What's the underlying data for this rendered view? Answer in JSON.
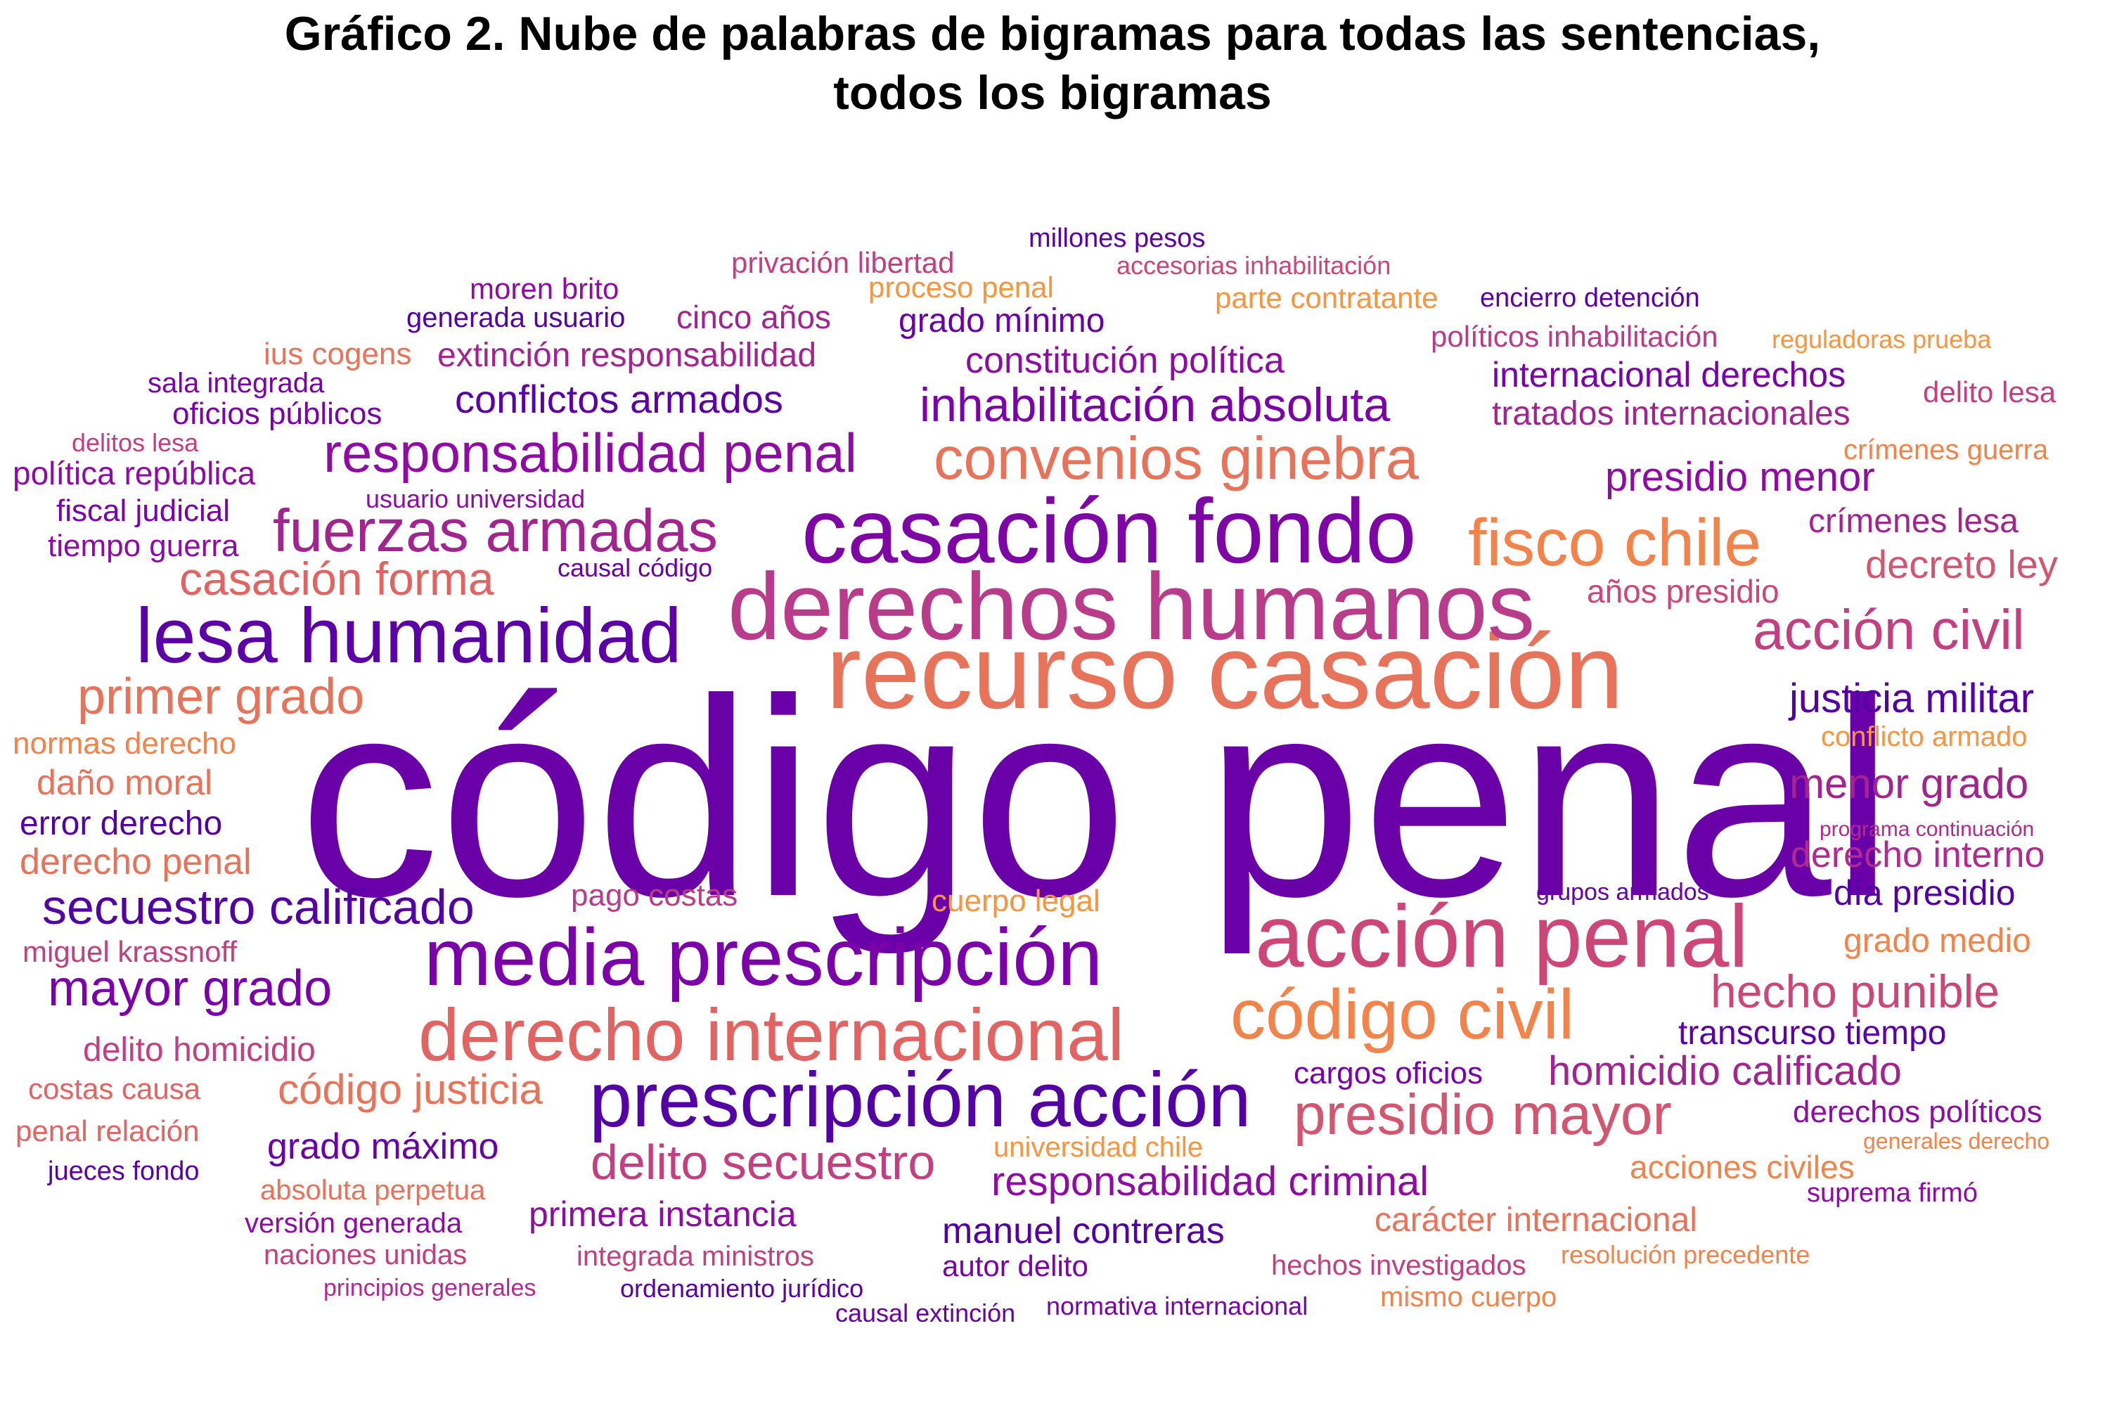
{
  "title": {
    "line1": "Gráfico 2. Nube de palabras de bigramas para todas las sentencias,",
    "line2": "todos los bigramas"
  },
  "palette": [
    "#6a00a8",
    "#8e0ca4",
    "#b12a90",
    "#cc4778",
    "#e16462",
    "#f2844b",
    "#f89540"
  ],
  "words": [
    {
      "text": "código penal",
      "size": 5,
      "color": "#6a00a8"
    },
    {
      "text": "recurso casación",
      "size": 4,
      "color": "#e8735b"
    },
    {
      "text": "derechos humanos",
      "size": 3,
      "color": "#b83c8a"
    },
    {
      "text": "casación fondo",
      "size": 3,
      "color": "#7e06a4"
    },
    {
      "text": "acción penal",
      "size": 3,
      "color": "#cc4778"
    },
    {
      "text": "media prescripción",
      "size": 3,
      "color": "#7a02a8"
    },
    {
      "text": "lesa humanidad",
      "size": 3,
      "color": "#5c01a6"
    },
    {
      "text": "prescripción acción",
      "size": 3,
      "color": "#5302a3"
    },
    {
      "text": "derecho internacional",
      "size": 3,
      "color": "#e16462"
    },
    {
      "text": "código civil",
      "size": 3,
      "color": "#f2844b"
    },
    {
      "text": "fisco chile",
      "size": 2,
      "color": "#f2844b"
    },
    {
      "text": "fuerzas armadas",
      "size": 2,
      "color": "#a2248f"
    },
    {
      "text": "convenios ginebra",
      "size": 2,
      "color": "#e8735b"
    },
    {
      "text": "presidio mayor",
      "size": 2,
      "color": "#d2566f"
    },
    {
      "text": "acción civil",
      "size": 2,
      "color": "#c23f80"
    },
    {
      "text": "responsabilidad penal",
      "size": 2,
      "color": "#8e0ca4"
    },
    {
      "text": "delito secuestro",
      "size": 2,
      "color": "#c23f80"
    },
    {
      "text": "secuestro calificado",
      "size": 2,
      "color": "#5302a3"
    },
    {
      "text": "inhabilitación absoluta",
      "size": 2,
      "color": "#7a02a8"
    },
    {
      "text": "mayor grado",
      "size": 2,
      "color": "#7a02a8"
    },
    {
      "text": "primer grado",
      "size": 2,
      "color": "#e8735b"
    },
    {
      "text": "casación forma",
      "size": 2,
      "color": "#e16462"
    },
    {
      "text": "hecho punible",
      "size": 2,
      "color": "#cc4778"
    },
    {
      "text": "justicia militar",
      "size": 2,
      "color": "#5302a3"
    },
    {
      "text": "menor grado",
      "size": 2,
      "color": "#a2248f"
    },
    {
      "text": "homicidio calificado",
      "size": 2,
      "color": "#a2248f"
    },
    {
      "text": "responsabilidad criminal",
      "size": 2,
      "color": "#8e0ca4"
    },
    {
      "text": "código justicia",
      "size": 2,
      "color": "#e8735b"
    },
    {
      "text": "presidio menor",
      "size": 2,
      "color": "#8e0ca4"
    },
    {
      "text": "decreto ley",
      "size": 2,
      "color": "#d2566f"
    },
    {
      "text": "derecho interno",
      "size": 2,
      "color": "#b12a90"
    },
    {
      "text": "grado máximo",
      "size": 2,
      "color": "#6a00a8"
    },
    {
      "text": "primera instancia",
      "size": 2,
      "color": "#8e0ca4"
    },
    {
      "text": "manuel contreras",
      "size": 2,
      "color": "#5302a3"
    },
    {
      "text": "conflictos armados",
      "size": 2,
      "color": "#5c01a6"
    },
    {
      "text": "constitución política",
      "size": 2,
      "color": "#8e0ca4"
    },
    {
      "text": "extinción responsabilidad",
      "size": 1,
      "color": "#a2248f"
    },
    {
      "text": "cinco años",
      "size": 1,
      "color": "#a2248f"
    },
    {
      "text": "grado mínimo",
      "size": 1,
      "color": "#6a00a8"
    },
    {
      "text": "internacional derechos",
      "size": 1,
      "color": "#7a02a8"
    },
    {
      "text": "tratados internacionales",
      "size": 1,
      "color": "#a2248f"
    },
    {
      "text": "crímenes lesa",
      "size": 1,
      "color": "#a2248f"
    },
    {
      "text": "años presidio",
      "size": 1,
      "color": "#cc4778"
    },
    {
      "text": "daño moral",
      "size": 1,
      "color": "#e8735b"
    },
    {
      "text": "derecho penal",
      "size": 1,
      "color": "#e8735b"
    },
    {
      "text": "error derecho",
      "size": 1,
      "color": "#5302a3"
    },
    {
      "text": "normas derecho",
      "size": 1,
      "color": "#f2844b"
    },
    {
      "text": "día presidio",
      "size": 1,
      "color": "#5302a3"
    },
    {
      "text": "grado medio",
      "size": 1,
      "color": "#f2844b"
    },
    {
      "text": "transcurso tiempo",
      "size": 1,
      "color": "#5c01a6"
    },
    {
      "text": "cargos oficios",
      "size": 1,
      "color": "#7a02a8"
    },
    {
      "text": "derechos políticos",
      "size": 1,
      "color": "#8e0ca4"
    },
    {
      "text": "acciones civiles",
      "size": 1,
      "color": "#f2844b"
    },
    {
      "text": "carácter internacional",
      "size": 1,
      "color": "#e8735b"
    },
    {
      "text": "pago costas",
      "size": 1,
      "color": "#b83c8a"
    },
    {
      "text": "cuerpo legal",
      "size": 1,
      "color": "#f89540"
    },
    {
      "text": "delito homicidio",
      "size": 1,
      "color": "#c23f80"
    },
    {
      "text": "política república",
      "size": 1,
      "color": "#8e0ca4"
    },
    {
      "text": "fiscal judicial",
      "size": 1,
      "color": "#7a02a8"
    },
    {
      "text": "tiempo guerra",
      "size": 1,
      "color": "#8e0ca4"
    },
    {
      "text": "oficios públicos",
      "size": 1,
      "color": "#7a02a8"
    },
    {
      "text": "ius cogens",
      "size": 1,
      "color": "#e8735b"
    },
    {
      "text": "moren brito",
      "size": 1,
      "color": "#8e0ca4"
    },
    {
      "text": "generada usuario",
      "size": 1,
      "color": "#5302a3"
    },
    {
      "text": "privación libertad",
      "size": 1,
      "color": "#c23f80"
    },
    {
      "text": "proceso penal",
      "size": 1,
      "color": "#f89540"
    },
    {
      "text": "millones pesos",
      "size": 1,
      "color": "#5c01a6"
    },
    {
      "text": "parte contratante",
      "size": 1,
      "color": "#f89540"
    },
    {
      "text": "encierro detención",
      "size": 1,
      "color": "#5c01a6"
    },
    {
      "text": "políticos inhabilitación",
      "size": 1,
      "color": "#b83c8a"
    },
    {
      "text": "delito lesa",
      "size": 1,
      "color": "#c23f80"
    },
    {
      "text": "crímenes guerra",
      "size": 1,
      "color": "#f2844b"
    },
    {
      "text": "conflicto armado",
      "size": 1,
      "color": "#f89540"
    },
    {
      "text": "costas causa",
      "size": 1,
      "color": "#e16462"
    },
    {
      "text": "penal relación",
      "size": 1,
      "color": "#e16462"
    },
    {
      "text": "miguel krassnoff",
      "size": 1,
      "color": "#c23f80"
    },
    {
      "text": "universidad chile",
      "size": 1,
      "color": "#f89540"
    },
    {
      "text": "autor delito",
      "size": 1,
      "color": "#7a02a8"
    },
    {
      "text": "hechos investigados",
      "size": 1,
      "color": "#c23f80"
    },
    {
      "text": "integrada ministros",
      "size": 1,
      "color": "#c23f80"
    },
    {
      "text": "versión generada",
      "size": 1,
      "color": "#8e0ca4"
    },
    {
      "text": "naciones unidas",
      "size": 1,
      "color": "#c23f80"
    },
    {
      "text": "absoluta perpetua",
      "size": 1,
      "color": "#e8735b"
    },
    {
      "text": "jueces fondo",
      "size": 1,
      "color": "#5c01a6"
    },
    {
      "text": "suprema firmó",
      "size": 1,
      "color": "#8e0ca4"
    },
    {
      "text": "mismo cuerpo",
      "size": 1,
      "color": "#f2844b"
    },
    {
      "text": "sala integrada",
      "size": 0,
      "color": "#7a02a8"
    },
    {
      "text": "delitos lesa",
      "size": 0,
      "color": "#c23f80"
    },
    {
      "text": "usuario universidad",
      "size": 0,
      "color": "#8e0ca4"
    },
    {
      "text": "causal código",
      "size": 0,
      "color": "#6a00a8"
    },
    {
      "text": "accesorias inhabilitación",
      "size": 0,
      "color": "#cc4778"
    },
    {
      "text": "reguladoras prueba",
      "size": 0,
      "color": "#f89540"
    },
    {
      "text": "programa continuación",
      "size": 0,
      "color": "#b12a90"
    },
    {
      "text": "grupos armados",
      "size": 0,
      "color": "#6a00a8"
    },
    {
      "text": "generales derecho",
      "size": 0,
      "color": "#f2844b"
    },
    {
      "text": "resolución precedente",
      "size": 0,
      "color": "#f2844b"
    },
    {
      "text": "principios generales",
      "size": 0,
      "color": "#b12a90"
    },
    {
      "text": "ordenamiento jurídico",
      "size": 0,
      "color": "#5c01a6"
    },
    {
      "text": "causal extinción",
      "size": 0,
      "color": "#6a00a8"
    },
    {
      "text": "normativa internacional",
      "size": 0,
      "color": "#7a02a8"
    }
  ]
}
